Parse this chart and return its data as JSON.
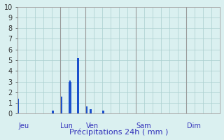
{
  "title": "",
  "xlabel": "Précipitations 24h ( mm )",
  "background_color": "#daf0f0",
  "bar_color": "#1a4fcc",
  "ylim": [
    0,
    10
  ],
  "yticks": [
    0,
    1,
    2,
    3,
    4,
    5,
    6,
    7,
    8,
    9,
    10
  ],
  "grid_color": "#aacece",
  "day_labels": [
    "Jeu",
    "Lun",
    "Ven",
    "Sam",
    "Dim"
  ],
  "day_positions": [
    0,
    40,
    64,
    112,
    160
  ],
  "total_bars": 192,
  "bar_values": [
    1.4,
    0,
    0,
    0,
    0,
    0,
    0,
    0,
    0,
    0,
    0,
    0,
    0,
    0,
    0,
    0,
    0,
    0,
    0,
    0,
    0,
    0,
    0,
    0,
    0,
    0,
    0,
    0,
    0,
    0,
    0,
    0,
    0.3,
    0.3,
    0,
    0,
    0,
    0,
    0,
    0,
    1.5,
    1.6,
    0,
    0,
    0,
    0,
    0,
    0,
    3.0,
    3.1,
    3.0,
    0,
    0,
    0,
    0,
    0,
    5.2,
    5.2,
    0,
    0,
    0,
    0,
    0,
    0,
    0.7,
    0.7,
    0,
    0,
    0.4,
    0.4,
    0,
    0,
    0,
    0,
    0,
    0,
    0,
    0,
    0,
    0,
    0.3,
    0.3,
    0,
    0,
    0,
    0,
    0,
    0,
    0,
    0,
    0,
    0,
    0,
    0,
    0,
    0,
    0,
    0,
    0,
    0,
    0,
    0,
    0,
    0,
    0,
    0,
    0,
    0,
    0,
    0,
    0,
    0,
    0,
    0,
    0,
    0,
    0,
    0,
    0,
    0,
    0,
    0,
    0,
    0,
    0,
    0,
    0,
    0,
    0,
    0,
    0,
    0,
    0,
    0,
    0,
    0,
    0,
    0,
    0,
    0,
    0,
    0,
    0,
    0,
    0,
    0,
    0,
    0,
    0,
    0,
    0,
    0,
    0,
    0,
    0,
    0,
    0,
    0,
    0,
    0,
    0,
    0,
    0,
    0,
    0,
    0,
    0,
    0,
    0,
    0,
    0,
    0,
    0,
    0,
    0,
    0,
    0,
    0,
    0,
    0,
    0,
    0,
    0,
    0,
    0,
    0,
    0,
    0,
    0,
    0,
    0,
    0
  ],
  "xlabel_fontsize": 8,
  "tick_fontsize": 7,
  "day_label_color": "#3333bb",
  "day_label_fontsize": 7,
  "xtick_label_color": "#555555"
}
